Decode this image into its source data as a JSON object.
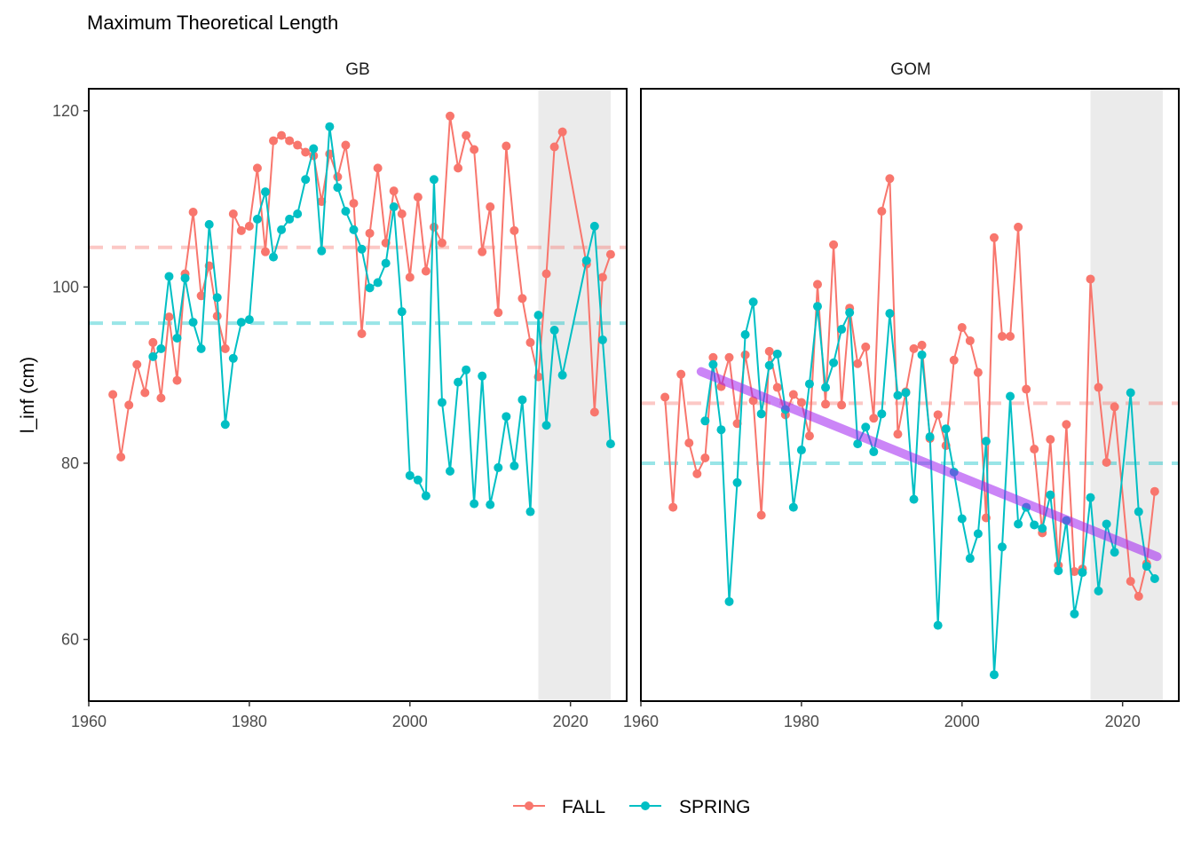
{
  "chart_data": {
    "type": "line",
    "title": "Maximum Theoretical Length",
    "ylabel": "l_inf (cm)",
    "xlabel": "",
    "xlim": [
      1960,
      2027
    ],
    "ylim": [
      53,
      122.5
    ],
    "xticks": [
      1960,
      1980,
      2000,
      2020
    ],
    "yticks": [
      60,
      80,
      100,
      120
    ],
    "grid": false,
    "legend_position": "bottom",
    "colors": {
      "FALL": "#F8766D",
      "SPRING": "#00BFC4",
      "trend": "#A020F0",
      "shade": "#EBEBEB"
    },
    "legend": [
      {
        "name": "FALL",
        "color": "#F8766D"
      },
      {
        "name": "SPRING",
        "color": "#00BFC4"
      }
    ],
    "panels": [
      {
        "strip": "GB",
        "shade_range": [
          2016,
          2025
        ],
        "reference_lines": {
          "FALL": 104.5,
          "SPRING": 95.9
        },
        "trend": null,
        "series": [
          {
            "name": "FALL",
            "x": [
              1963,
              1964,
              1965,
              1966,
              1967,
              1968,
              1969,
              1970,
              1971,
              1972,
              1973,
              1974,
              1975,
              1976,
              1977,
              1978,
              1979,
              1980,
              1981,
              1982,
              1983,
              1984,
              1985,
              1986,
              1987,
              1988,
              1989,
              1990,
              1991,
              1992,
              1993,
              1994,
              1995,
              1996,
              1997,
              1998,
              1999,
              2000,
              2001,
              2002,
              2003,
              2004,
              2005,
              2006,
              2007,
              2008,
              2009,
              2010,
              2011,
              2012,
              2013,
              2014,
              2015,
              2016,
              2017,
              2018,
              2019,
              2022,
              2023,
              2024,
              2025
            ],
            "y": [
              87.8,
              80.7,
              86.6,
              91.2,
              88.0,
              93.7,
              87.4,
              96.6,
              89.4,
              101.5,
              108.5,
              99.0,
              102.4,
              96.7,
              93.0,
              108.3,
              106.4,
              106.9,
              113.5,
              104.0,
              116.6,
              117.2,
              116.6,
              116.1,
              115.3,
              114.9,
              109.7,
              115.1,
              112.5,
              116.1,
              109.5,
              94.7,
              106.1,
              113.5,
              105.0,
              110.9,
              108.3,
              101.1,
              110.2,
              101.8,
              106.8,
              105.0,
              119.4,
              113.5,
              117.2,
              115.6,
              104.0,
              109.1,
              97.1,
              116.0,
              106.4,
              98.7,
              93.7,
              89.8,
              101.5,
              115.9,
              117.6,
              102.6,
              85.8,
              101.1,
              103.7
            ]
          },
          {
            "name": "SPRING",
            "x": [
              1968,
              1969,
              1970,
              1971,
              1972,
              1973,
              1974,
              1975,
              1976,
              1977,
              1978,
              1979,
              1980,
              1981,
              1982,
              1983,
              1984,
              1985,
              1986,
              1987,
              1988,
              1989,
              1990,
              1991,
              1992,
              1993,
              1994,
              1995,
              1996,
              1997,
              1998,
              1999,
              2000,
              2001,
              2002,
              2003,
              2004,
              2005,
              2006,
              2007,
              2008,
              2009,
              2010,
              2011,
              2012,
              2013,
              2014,
              2015,
              2016,
              2017,
              2018,
              2019,
              2022,
              2023,
              2024,
              2025
            ],
            "y": [
              92.1,
              93.0,
              101.2,
              94.2,
              101.0,
              96.0,
              93.0,
              107.1,
              98.8,
              84.4,
              91.9,
              96.0,
              96.3,
              107.7,
              110.8,
              103.4,
              106.5,
              107.7,
              108.3,
              112.2,
              115.7,
              104.1,
              118.2,
              111.3,
              108.6,
              106.5,
              104.3,
              99.9,
              100.5,
              102.7,
              109.1,
              97.2,
              78.6,
              78.1,
              76.3,
              112.2,
              86.9,
              79.1,
              89.2,
              90.6,
              75.4,
              89.9,
              75.3,
              79.5,
              85.3,
              79.7,
              87.2,
              74.5,
              96.8,
              84.3,
              95.1,
              90.0,
              103.0,
              106.9,
              94.0,
              82.2
            ]
          }
        ]
      },
      {
        "strip": "GOM",
        "shade_range": [
          2016,
          2025
        ],
        "reference_lines": {
          "FALL": 86.8,
          "SPRING": 80.0
        },
        "trend": {
          "x": [
            1967.5,
            2024.3
          ],
          "y": [
            90.4,
            69.4
          ]
        },
        "series": [
          {
            "name": "FALL",
            "x": [
              1963,
              1964,
              1965,
              1966,
              1967,
              1968,
              1969,
              1970,
              1971,
              1972,
              1973,
              1974,
              1975,
              1976,
              1977,
              1978,
              1979,
              1980,
              1981,
              1982,
              1983,
              1984,
              1985,
              1986,
              1987,
              1988,
              1989,
              1990,
              1991,
              1992,
              1993,
              1994,
              1995,
              1996,
              1997,
              1998,
              1999,
              2000,
              2001,
              2002,
              2003,
              2004,
              2005,
              2006,
              2007,
              2008,
              2009,
              2010,
              2011,
              2012,
              2013,
              2014,
              2015,
              2016,
              2017,
              2018,
              2019,
              2021,
              2022,
              2023,
              2024
            ],
            "y": [
              87.5,
              75.0,
              90.1,
              82.3,
              78.8,
              80.6,
              92.0,
              88.7,
              92.0,
              84.5,
              92.3,
              87.1,
              74.1,
              92.7,
              88.6,
              85.5,
              87.8,
              86.9,
              83.1,
              100.3,
              86.7,
              104.8,
              86.6,
              97.6,
              91.3,
              93.2,
              85.1,
              108.6,
              112.3,
              83.3,
              88.1,
              93.0,
              93.4,
              82.8,
              85.5,
              82.0,
              91.7,
              95.4,
              93.9,
              90.3,
              73.8,
              105.6,
              94.4,
              94.4,
              106.8,
              88.4,
              81.6,
              72.1,
              82.7,
              68.4,
              84.4,
              67.7,
              68.0,
              100.9,
              88.6,
              80.1,
              86.4,
              66.6,
              64.9,
              68.6,
              76.8
            ]
          },
          {
            "name": "SPRING",
            "x": [
              1968,
              1969,
              1970,
              1971,
              1972,
              1973,
              1974,
              1975,
              1976,
              1977,
              1978,
              1979,
              1980,
              1981,
              1982,
              1983,
              1984,
              1985,
              1986,
              1987,
              1988,
              1989,
              1990,
              1991,
              1992,
              1993,
              1994,
              1995,
              1996,
              1997,
              1998,
              1999,
              2000,
              2001,
              2002,
              2003,
              2004,
              2005,
              2006,
              2007,
              2008,
              2009,
              2010,
              2011,
              2012,
              2013,
              2014,
              2015,
              2016,
              2017,
              2018,
              2019,
              2021,
              2022,
              2023,
              2024
            ],
            "y": [
              84.8,
              91.2,
              83.8,
              64.3,
              77.8,
              94.6,
              98.3,
              85.6,
              91.1,
              92.4,
              86.1,
              75.0,
              81.5,
              89.0,
              97.8,
              88.6,
              91.4,
              95.2,
              97.1,
              82.2,
              84.1,
              81.3,
              85.6,
              97.0,
              87.7,
              88.0,
              75.9,
              92.3,
              83.0,
              61.6,
              83.9,
              79.0,
              73.7,
              69.2,
              72.0,
              82.5,
              56.0,
              70.5,
              87.6,
              73.1,
              75.0,
              73.0,
              72.6,
              76.4,
              67.8,
              73.5,
              62.9,
              67.6,
              76.1,
              65.5,
              73.1,
              69.9,
              88.0,
              74.5,
              68.3,
              66.9
            ]
          }
        ]
      }
    ]
  }
}
